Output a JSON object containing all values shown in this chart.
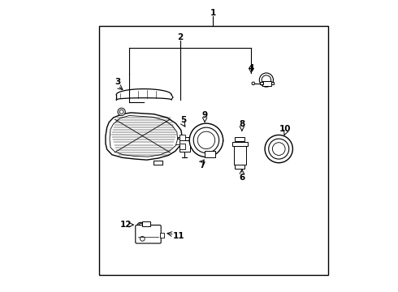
{
  "bg_color": "#ffffff",
  "line_color": "#000000",
  "text_color": "#000000",
  "figsize": [
    4.9,
    3.6
  ],
  "dpi": 100,
  "border": [
    0.155,
    0.055,
    0.945,
    0.915
  ]
}
